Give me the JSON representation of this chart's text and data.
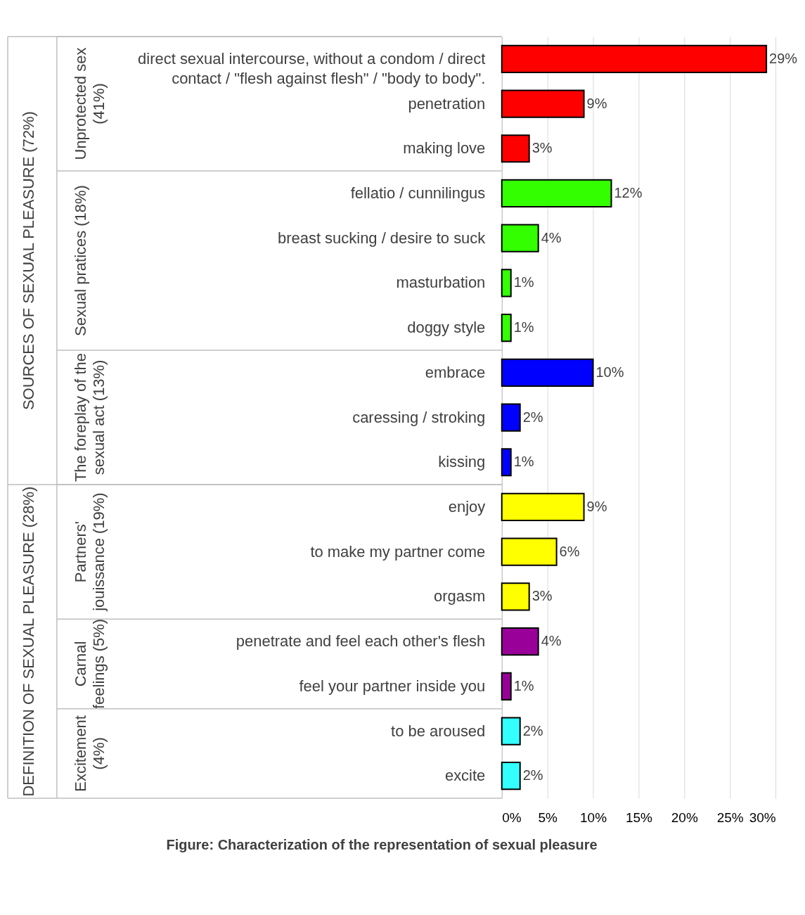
{
  "chart_data": {
    "type": "bar",
    "orientation": "horizontal",
    "title": "Figure:  Characterization of the representation of sexual pleasure",
    "categories": [
      "direct sexual intercourse, without a condom / direct\ncontact / \"flesh against flesh\" / \"body to body\".",
      "penetration",
      "making love",
      "fellatio / cunnilingus",
      "breast sucking / desire to suck",
      "masturbation",
      "doggy style",
      "embrace",
      "caressing / stroking",
      "kissing",
      "enjoy",
      "to make my partner come",
      "orgasm",
      "penetrate and feel each other's flesh",
      "feel your partner inside you",
      "to be aroused",
      "excite"
    ],
    "values": [
      29,
      9,
      3,
      12,
      4,
      1,
      1,
      10,
      2,
      1,
      9,
      6,
      3,
      4,
      1,
      2,
      2
    ],
    "value_labels": [
      "29%",
      "9%",
      "3%",
      "12%",
      "4%",
      "1%",
      "1%",
      "10%",
      "2%",
      "1%",
      "9%",
      "6%",
      "3%",
      "4%",
      "1%",
      "2%",
      "2%"
    ],
    "colors": [
      "#ff0000",
      "#ff0000",
      "#ff0000",
      "#33ff00",
      "#33ff00",
      "#33ff00",
      "#33ff00",
      "#0000ff",
      "#0000ff",
      "#0000ff",
      "#ffff00",
      "#ffff00",
      "#ffff00",
      "#990099",
      "#990099",
      "#33ffff",
      "#33ffff"
    ],
    "xlim": [
      0,
      30
    ],
    "xticks": [
      {
        "value": 0,
        "label": "0%"
      },
      {
        "value": 5,
        "label": "5%"
      },
      {
        "value": 10,
        "label": "10%"
      },
      {
        "value": 15,
        "label": "15%"
      },
      {
        "value": 20,
        "label": "20%"
      },
      {
        "value": 25,
        "label": "25%"
      },
      {
        "value": 30,
        "label": "30%"
      }
    ],
    "grid": "x",
    "legend": false,
    "annotations": [
      "Unprotected sex\n(41%)",
      "Sexual pratices (18%)",
      "The foreplay of the\nsexual act (13%)",
      "Partners'\njouissance (19%)",
      "Carnal\nfeelings (5%)",
      "Excitement\n(4%)",
      "SOURCES OF SEXUAL PLEASURE (72%)",
      "DEFINITION OF SEXUAL PLEASURE (28%)"
    ]
  }
}
